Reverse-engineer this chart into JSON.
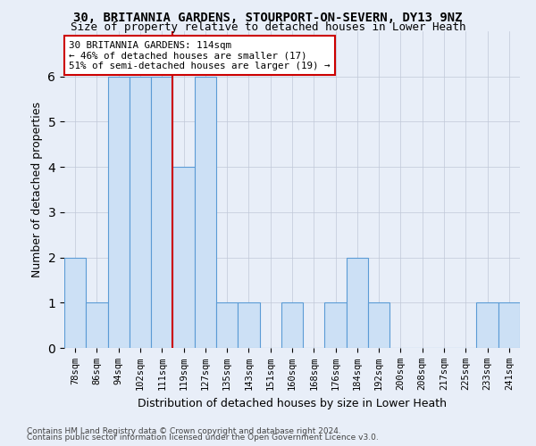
{
  "title": "30, BRITANNIA GARDENS, STOURPORT-ON-SEVERN, DY13 9NZ",
  "subtitle": "Size of property relative to detached houses in Lower Heath",
  "xlabel": "Distribution of detached houses by size in Lower Heath",
  "ylabel": "Number of detached properties",
  "bins": [
    "78sqm",
    "86sqm",
    "94sqm",
    "102sqm",
    "111sqm",
    "119sqm",
    "127sqm",
    "135sqm",
    "143sqm",
    "151sqm",
    "160sqm",
    "168sqm",
    "176sqm",
    "184sqm",
    "192sqm",
    "200sqm",
    "208sqm",
    "217sqm",
    "225sqm",
    "233sqm",
    "241sqm"
  ],
  "values": [
    2,
    1,
    6,
    6,
    6,
    4,
    6,
    1,
    1,
    0,
    1,
    0,
    1,
    2,
    1,
    0,
    0,
    0,
    0,
    1,
    1
  ],
  "bar_color": "#cce0f5",
  "bar_edge_color": "#5b9bd5",
  "vline_x": 4.5,
  "ylim": [
    0,
    7
  ],
  "yticks": [
    0,
    1,
    2,
    3,
    4,
    5,
    6,
    7
  ],
  "annotation_text": "30 BRITANNIA GARDENS: 114sqm\n← 46% of detached houses are smaller (17)\n51% of semi-detached houses are larger (19) →",
  "annotation_box_color": "#ffffff",
  "annotation_box_edge": "#cc0000",
  "vline_color": "#cc0000",
  "footer1": "Contains HM Land Registry data © Crown copyright and database right 2024.",
  "footer2": "Contains public sector information licensed under the Open Government Licence v3.0.",
  "background_color": "#e8eef8",
  "grid_color": "#c0c8d8"
}
